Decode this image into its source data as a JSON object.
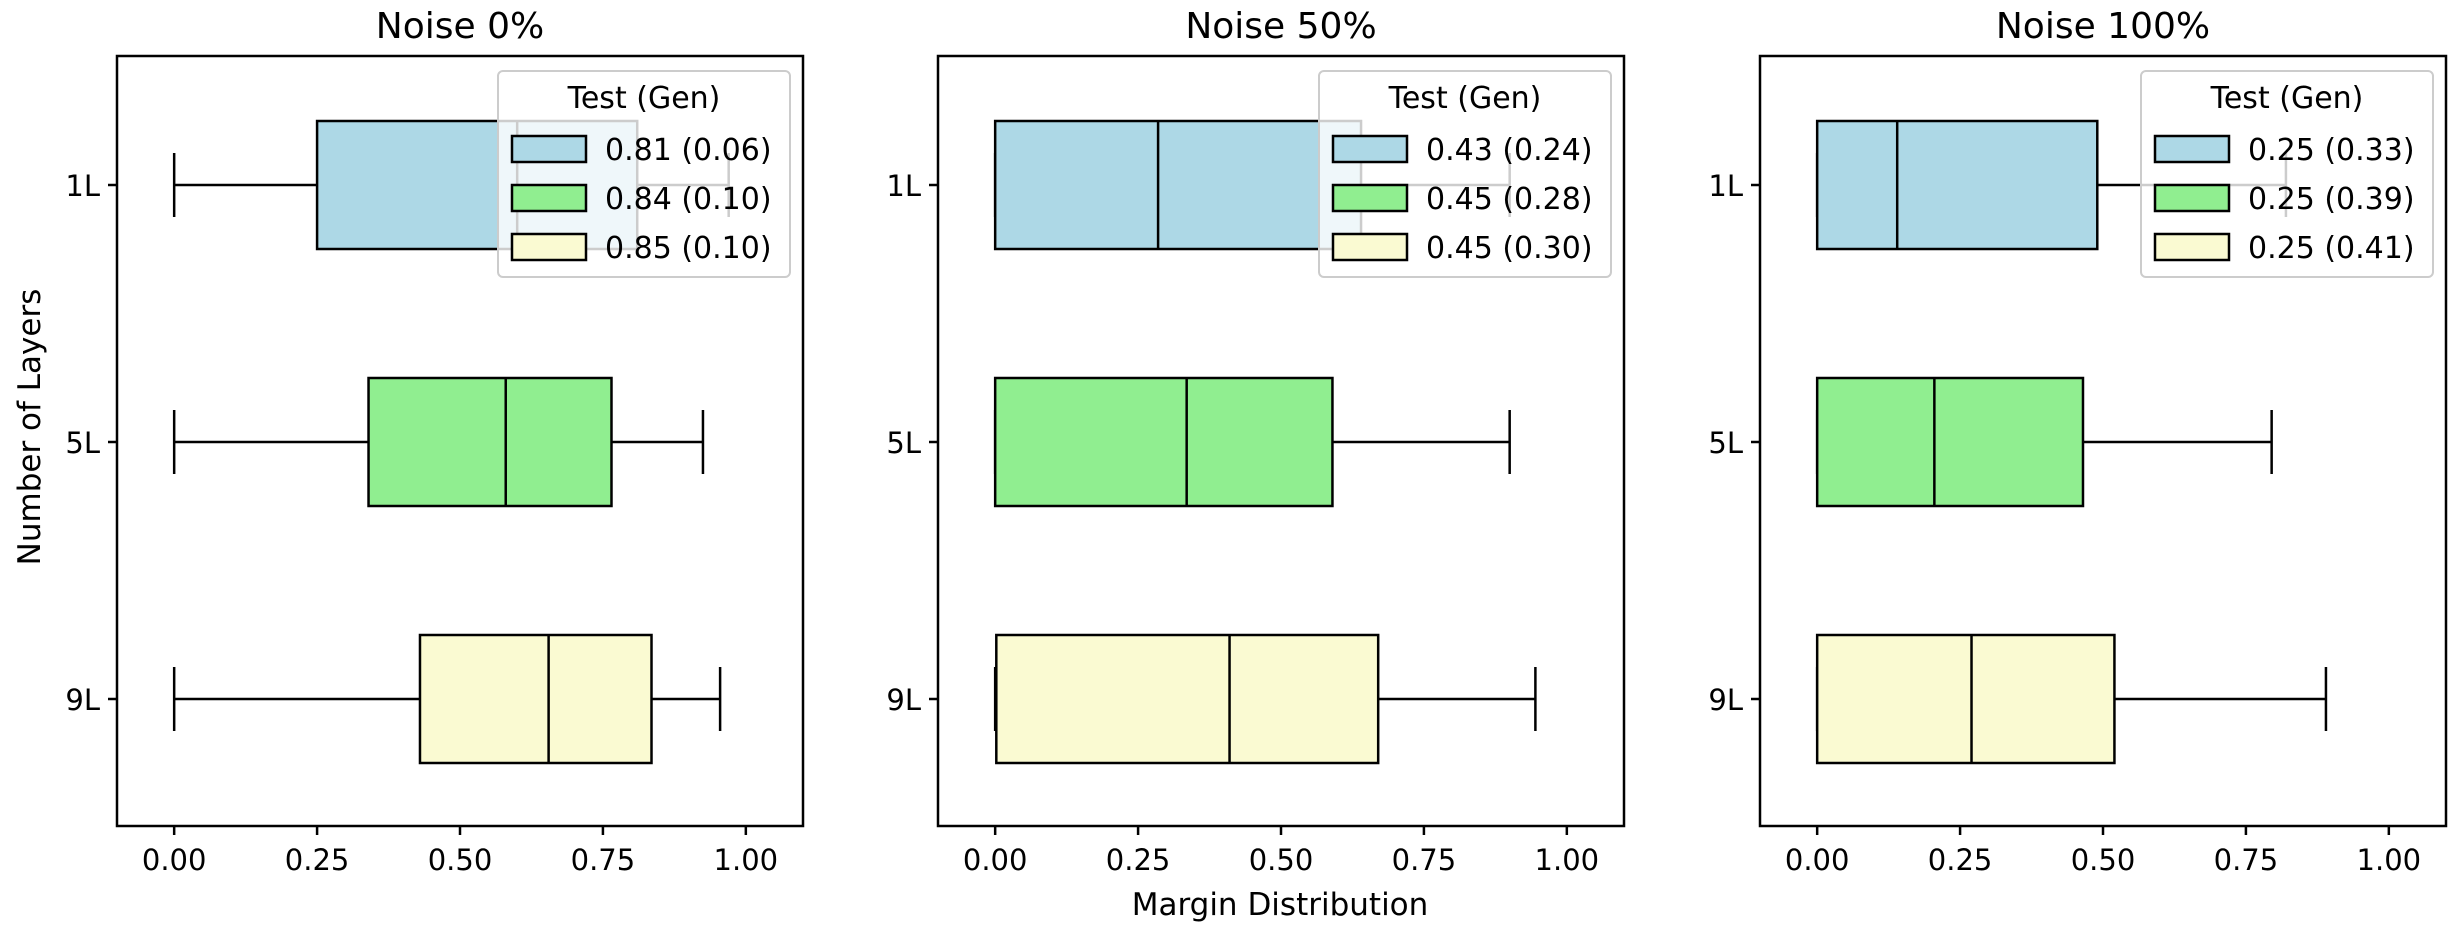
{
  "figure": {
    "ylabel": "Number of Layers",
    "xlabel": "Margin Distribution"
  },
  "chart_data": [
    {
      "type": "boxplot",
      "orientation": "horizontal",
      "title": "Noise 0%",
      "categories": [
        "1L",
        "5L",
        "9L"
      ],
      "xlim": [
        -0.1,
        1.1
      ],
      "xticks": [
        "0.00",
        "0.25",
        "0.50",
        "0.75",
        "1.00"
      ],
      "xtick_values": [
        0,
        0.25,
        0.5,
        0.75,
        1.0
      ],
      "boxes": [
        {
          "label": "1L",
          "whislo": 0.0,
          "q1": 0.25,
          "med": 0.6,
          "q3": 0.81,
          "whishi": 0.97,
          "color": "#add8e6"
        },
        {
          "label": "5L",
          "whislo": 0.0,
          "q1": 0.34,
          "med": 0.58,
          "q3": 0.765,
          "whishi": 0.925,
          "color": "#90ee90"
        },
        {
          "label": "9L",
          "whislo": 0.0,
          "q1": 0.43,
          "med": 0.655,
          "q3": 0.835,
          "whishi": 0.955,
          "color": "#fafad2"
        }
      ],
      "legend": {
        "title": "Test (Gen)",
        "location": "upper right",
        "entries": [
          "0.81 (0.06)",
          "0.84 (0.10)",
          "0.85 (0.10)"
        ]
      }
    },
    {
      "type": "boxplot",
      "orientation": "horizontal",
      "title": "Noise 50%",
      "categories": [
        "1L",
        "5L",
        "9L"
      ],
      "xlim": [
        -0.1,
        1.1
      ],
      "xticks": [
        "0.00",
        "0.25",
        "0.50",
        "0.75",
        "1.00"
      ],
      "xtick_values": [
        0,
        0.25,
        0.5,
        0.75,
        1.0
      ],
      "boxes": [
        {
          "label": "1L",
          "whislo": 0.0,
          "q1": 0.0,
          "med": 0.285,
          "q3": 0.64,
          "whishi": 0.9,
          "color": "#add8e6"
        },
        {
          "label": "5L",
          "whislo": 0.0,
          "q1": 0.0,
          "med": 0.335,
          "q3": 0.59,
          "whishi": 0.9,
          "color": "#90ee90"
        },
        {
          "label": "9L",
          "whislo": 0.0,
          "q1": 0.002,
          "med": 0.41,
          "q3": 0.67,
          "whishi": 0.945,
          "color": "#fafad2"
        }
      ],
      "legend": {
        "title": "Test (Gen)",
        "location": "upper right",
        "entries": [
          "0.43 (0.24)",
          "0.45 (0.28)",
          "0.45 (0.30)"
        ]
      }
    },
    {
      "type": "boxplot",
      "orientation": "horizontal",
      "title": "Noise 100%",
      "categories": [
        "1L",
        "5L",
        "9L"
      ],
      "xlim": [
        -0.1,
        1.1
      ],
      "xticks": [
        "0.00",
        "0.25",
        "0.50",
        "0.75",
        "1.00"
      ],
      "xtick_values": [
        0,
        0.25,
        0.5,
        0.75,
        1.0
      ],
      "boxes": [
        {
          "label": "1L",
          "whislo": 0.0,
          "q1": 0.0,
          "med": 0.14,
          "q3": 0.49,
          "whishi": 0.82,
          "color": "#add8e6"
        },
        {
          "label": "5L",
          "whislo": 0.0,
          "q1": 0.0,
          "med": 0.205,
          "q3": 0.465,
          "whishi": 0.795,
          "color": "#90ee90"
        },
        {
          "label": "9L",
          "whislo": 0.0,
          "q1": 0.0,
          "med": 0.27,
          "q3": 0.52,
          "whishi": 0.89,
          "color": "#fafad2"
        }
      ],
      "legend": {
        "title": "Test (Gen)",
        "location": "upper right",
        "entries": [
          "0.25 (0.33)",
          "0.25 (0.39)",
          "0.25 (0.41)"
        ]
      }
    }
  ]
}
